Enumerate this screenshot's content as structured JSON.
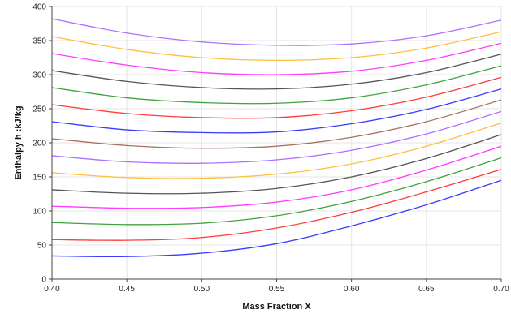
{
  "chart_data": {
    "type": "line",
    "title": "",
    "xlabel": "Mass Fraction X",
    "ylabel": "Enthalpy h :kJ/kg",
    "xlim": [
      0.4,
      0.7
    ],
    "ylim": [
      0,
      400
    ],
    "x_ticks": [
      "0.40",
      "0.45",
      "0.50",
      "0.55",
      "0.60",
      "0.65",
      "0.70"
    ],
    "y_ticks": [
      "0",
      "50",
      "100",
      "150",
      "200",
      "250",
      "300",
      "350",
      "400"
    ],
    "grid": true,
    "legend": "none",
    "x": [
      0.4,
      0.45,
      0.5,
      0.55,
      0.6,
      0.65,
      0.7
    ],
    "series": [
      {
        "color": "#3b3bff",
        "values": [
          34,
          33,
          38,
          52,
          78,
          109,
          145
        ]
      },
      {
        "color": "#ff3b3b",
        "values": [
          58,
          57,
          61,
          75,
          98,
          128,
          161
        ]
      },
      {
        "color": "#3fa33f",
        "values": [
          83,
          80,
          82,
          93,
          114,
          143,
          178
        ]
      },
      {
        "color": "#ff3bff",
        "values": [
          107,
          104,
          105,
          113,
          131,
          160,
          195
        ]
      },
      {
        "color": "#555555",
        "values": [
          131,
          126,
          126,
          133,
          150,
          177,
          212
        ]
      },
      {
        "color": "#ffbf40",
        "values": [
          156,
          149,
          148,
          154,
          169,
          195,
          229
        ]
      },
      {
        "color": "#b070ff",
        "values": [
          181,
          172,
          170,
          175,
          189,
          213,
          246
        ]
      },
      {
        "color": "#a87060",
        "values": [
          206,
          196,
          192,
          195,
          208,
          231,
          263
        ]
      },
      {
        "color": "#3b3bff",
        "values": [
          231,
          219,
          215,
          216,
          228,
          249,
          279
        ]
      },
      {
        "color": "#ff3b3b",
        "values": [
          256,
          243,
          237,
          237,
          247,
          267,
          296
        ]
      },
      {
        "color": "#3fa33f",
        "values": [
          281,
          266,
          259,
          258,
          266,
          285,
          313
        ]
      },
      {
        "color": "#555555",
        "values": [
          306,
          290,
          281,
          279,
          286,
          303,
          330
        ]
      },
      {
        "color": "#ff3bff",
        "values": [
          331,
          314,
          303,
          300,
          305,
          321,
          346
        ]
      },
      {
        "color": "#ffbf40",
        "values": [
          356,
          337,
          325,
          321,
          325,
          339,
          363
        ]
      },
      {
        "color": "#b070ff",
        "values": [
          382,
          361,
          348,
          343,
          345,
          357,
          380
        ]
      }
    ]
  }
}
